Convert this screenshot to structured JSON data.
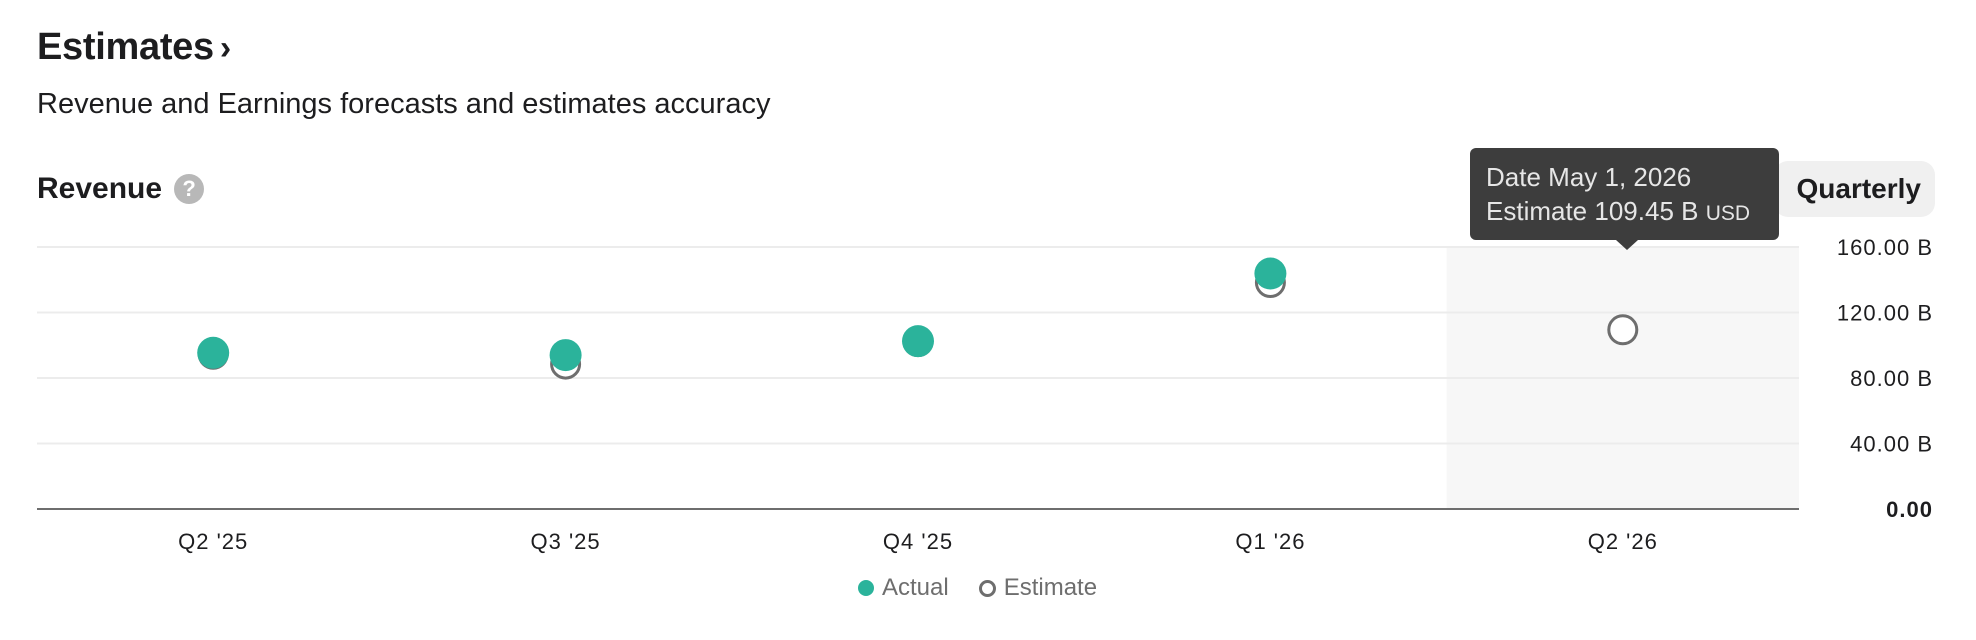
{
  "header": {
    "title": "Estimates",
    "chevron": "›",
    "subtitle": "Revenue and Earnings forecasts and estimates accuracy"
  },
  "section": {
    "title": "Revenue",
    "help_icon": "?"
  },
  "period_selector": {
    "label": "Quarterly"
  },
  "tooltip": {
    "date_label": "Date",
    "date": "May 1, 2026",
    "estimate_label": "Estimate",
    "value": "109.45 B",
    "unit": "USD"
  },
  "chart_data": {
    "type": "scatter",
    "categories": [
      "Q2 '25",
      "Q3 '25",
      "Q4 '25",
      "Q1 '26",
      "Q2 '26"
    ],
    "series": [
      {
        "name": "Actual",
        "values": [
          95.4,
          94.0,
          102.5,
          143.8,
          null
        ],
        "color": "#2bb39b"
      },
      {
        "name": "Estimate",
        "values": [
          94.5,
          88.5,
          102.2,
          138.3,
          109.45
        ],
        "color": "#6e6e6e"
      }
    ],
    "ylim": [
      0,
      160
    ],
    "yticks": [
      0,
      40,
      80,
      120,
      160
    ],
    "ytick_labels": [
      "0.00",
      "40.00 B",
      "80.00 B",
      "120.00 B",
      "160.00 B"
    ],
    "y_axis_position": "right",
    "grid": true,
    "highlighted_category": "Q2 '26",
    "legend": "bottom"
  }
}
